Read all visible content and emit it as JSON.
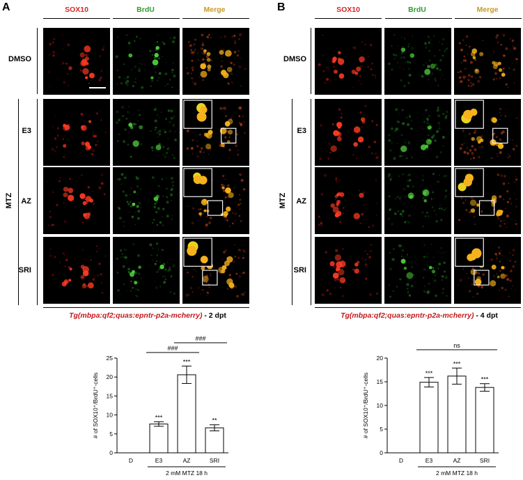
{
  "panels": [
    {
      "letter": "A",
      "columns": [
        {
          "label": "SOX10",
          "color": "#d6252a"
        },
        {
          "label": "BrdU",
          "color": "#2c9a2c"
        },
        {
          "label": "Merge",
          "color": "#c79a1e"
        }
      ],
      "rows": [
        "DMSO",
        "E3",
        "AZ",
        "SRI"
      ],
      "group_label": "MTZ",
      "caption_tg": "Tg(mbpa:qf2;quas:epntr-p2a-mcherry)",
      "caption_dpt": " - 2 dpt"
    },
    {
      "letter": "B",
      "columns": [
        {
          "label": "SOX10",
          "color": "#d6252a"
        },
        {
          "label": "BrdU",
          "color": "#2c9a2c"
        },
        {
          "label": "Merge",
          "color": "#c79a1e"
        }
      ],
      "rows": [
        "DMSO",
        "E3",
        "AZ",
        "SRI"
      ],
      "group_label": "MTZ",
      "caption_tg": "Tg(mbpa:qf2;quas:epntr-p2a-mcherry)",
      "caption_dpt": " - 4 dpt"
    }
  ],
  "chart_data": [
    {
      "type": "bar",
      "ylabel": "# of SOX10⁺/BrdU⁺-cells",
      "categories": [
        "D",
        "E3",
        "AZ",
        "SRI"
      ],
      "values": [
        0,
        7.6,
        20.6,
        6.6
      ],
      "errors": [
        0,
        0.6,
        2.3,
        0.8
      ],
      "sig": [
        "",
        "***",
        "***",
        "**"
      ],
      "ylim": [
        0,
        25
      ],
      "yticks": [
        0,
        5,
        10,
        15,
        20,
        25
      ],
      "xgroup_label": "2 mM MTZ 18 h",
      "brackets": [
        {
          "from": 1,
          "to": 2,
          "label": "###"
        },
        {
          "from": 2,
          "to": 3,
          "label": "###"
        }
      ]
    },
    {
      "type": "bar",
      "ylabel": "# of SOX10⁺/BrdU⁺-cells",
      "categories": [
        "D",
        "E3",
        "AZ",
        "SRI"
      ],
      "values": [
        0,
        14.9,
        16.2,
        13.8
      ],
      "errors": [
        0,
        1.0,
        1.7,
        0.8
      ],
      "sig": [
        "",
        "***",
        "***",
        "***"
      ],
      "ylim": [
        0,
        20
      ],
      "yticks": [
        0,
        5,
        10,
        15,
        20
      ],
      "xgroup_label": "2 mM MTZ 18 h",
      "brackets": [
        {
          "from": 1,
          "to": 3,
          "label": "ns"
        }
      ]
    }
  ]
}
